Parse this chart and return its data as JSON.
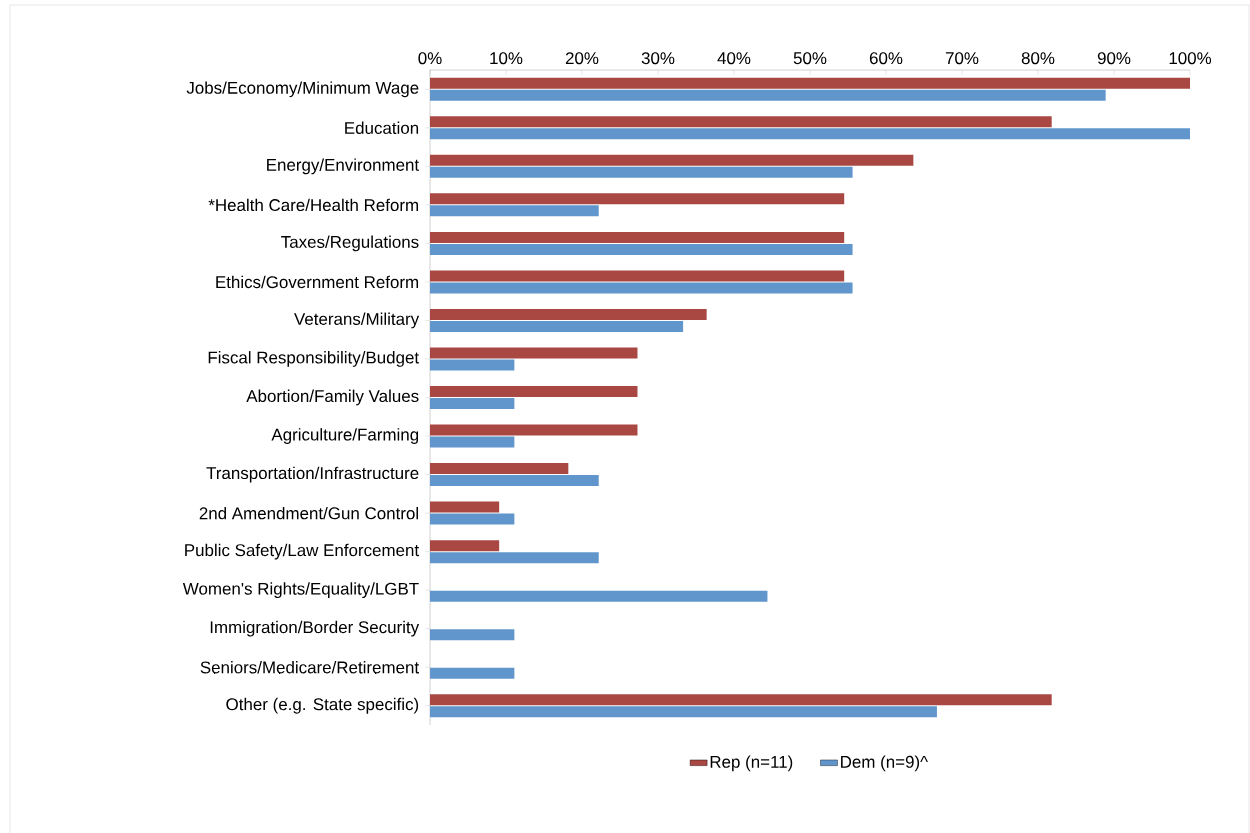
{
  "chart_data": {
    "type": "bar",
    "orientation": "horizontal",
    "categories": [
      "Jobs/Economy/Minimum Wage",
      "Education",
      "Energy/Environment",
      "*Health Care/Health Reform",
      "Taxes/Regulations",
      "Ethics/Government Reform",
      "Veterans/Military",
      "Fiscal Responsibility/Budget",
      "Abortion/Family Values",
      "Agriculture/Farming",
      "Transportation/Infrastructure",
      "2nd Amendment/Gun Control",
      "Public Safety/Law Enforcement",
      "Women's Rights/Equality/LGBT",
      "Immigration/Border Security",
      "Seniors/Medicare/Retirement",
      "Other (e.g. State specific)"
    ],
    "series": [
      {
        "name": "Rep (n=11)",
        "color": "#a94843",
        "values": [
          100,
          81.8,
          63.6,
          54.5,
          54.5,
          54.5,
          36.4,
          27.3,
          27.3,
          27.3,
          18.2,
          9.1,
          9.1,
          0,
          0,
          0,
          81.8
        ]
      },
      {
        "name": "Dem (n=9)^",
        "color": "#6096cc",
        "values": [
          88.9,
          100,
          55.6,
          22.2,
          55.6,
          55.6,
          33.3,
          11.1,
          11.1,
          11.1,
          22.2,
          11.1,
          22.2,
          44.4,
          11.1,
          11.1,
          66.7
        ]
      }
    ],
    "xlim": [
      0,
      100
    ],
    "xticks": [
      {
        "value": 0,
        "label": "0%"
      },
      {
        "value": 10,
        "label": "10%"
      },
      {
        "value": 20,
        "label": "20%"
      },
      {
        "value": 30,
        "label": "30%"
      },
      {
        "value": 40,
        "label": "40%"
      },
      {
        "value": 50,
        "label": "50%"
      },
      {
        "value": 60,
        "label": "60%"
      },
      {
        "value": 70,
        "label": "70%"
      },
      {
        "value": 80,
        "label": "80%"
      },
      {
        "value": 90,
        "label": "90%"
      },
      {
        "value": 100,
        "label": "100%"
      }
    ],
    "grid": false,
    "legend": "bottom"
  }
}
